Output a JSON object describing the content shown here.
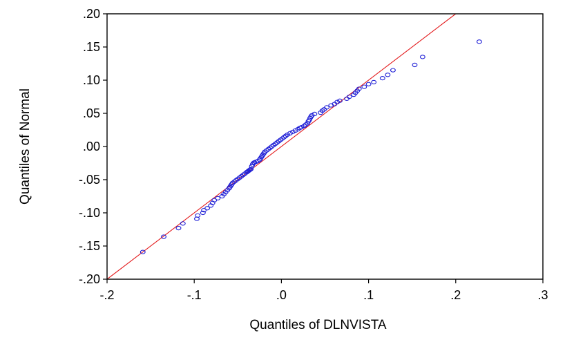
{
  "chart_data": {
    "type": "scatter",
    "title": "",
    "xlabel": "Quantiles of DLNVISTA",
    "ylabel": "Quantiles of Normal",
    "xlim": [
      -0.2,
      0.3
    ],
    "ylim": [
      -0.2,
      0.2
    ],
    "x_ticks": [
      -0.2,
      -0.1,
      0.0,
      0.1,
      0.2,
      0.3
    ],
    "x_tick_labels": [
      "-.2",
      "-.1",
      ".0",
      ".1",
      ".2",
      ".3"
    ],
    "y_ticks": [
      -0.2,
      -0.15,
      -0.1,
      -0.05,
      0.0,
      0.05,
      0.1,
      0.15,
      0.2
    ],
    "y_tick_labels": [
      "-.20",
      "-.15",
      "-.10",
      "-.05",
      ".00",
      ".05",
      ".10",
      ".15",
      ".20"
    ],
    "grid": false,
    "legend": "none",
    "reference_line": {
      "name": "",
      "color": "#e31a1c",
      "points": [
        [
          -0.2,
          -0.2
        ],
        [
          0.2,
          0.2
        ]
      ]
    },
    "marker_color": "#1f1fd6",
    "series": [
      {
        "name": "",
        "points": [
          [
            -0.159,
            -0.159
          ],
          [
            -0.135,
            -0.136
          ],
          [
            -0.118,
            -0.123
          ],
          [
            -0.113,
            -0.116
          ],
          [
            -0.097,
            -0.109
          ],
          [
            -0.096,
            -0.104
          ],
          [
            -0.09,
            -0.1
          ],
          [
            -0.089,
            -0.096
          ],
          [
            -0.085,
            -0.093
          ],
          [
            -0.081,
            -0.089
          ],
          [
            -0.079,
            -0.085
          ],
          [
            -0.077,
            -0.081
          ],
          [
            -0.073,
            -0.078
          ],
          [
            -0.068,
            -0.075
          ],
          [
            -0.066,
            -0.072
          ],
          [
            -0.064,
            -0.069
          ],
          [
            -0.062,
            -0.066
          ],
          [
            -0.06,
            -0.063
          ],
          [
            -0.059,
            -0.061
          ],
          [
            -0.058,
            -0.059
          ],
          [
            -0.057,
            -0.057
          ],
          [
            -0.056,
            -0.055
          ],
          [
            -0.054,
            -0.053
          ],
          [
            -0.052,
            -0.051
          ],
          [
            -0.05,
            -0.049
          ],
          [
            -0.048,
            -0.047
          ],
          [
            -0.046,
            -0.045
          ],
          [
            -0.044,
            -0.043
          ],
          [
            -0.042,
            -0.041
          ],
          [
            -0.04,
            -0.039
          ],
          [
            -0.039,
            -0.038
          ],
          [
            -0.038,
            -0.037
          ],
          [
            -0.037,
            -0.036
          ],
          [
            -0.036,
            -0.035
          ],
          [
            -0.035,
            -0.034
          ],
          [
            -0.034,
            -0.03
          ],
          [
            -0.033,
            -0.027
          ],
          [
            -0.032,
            -0.025
          ],
          [
            -0.031,
            -0.024
          ],
          [
            -0.029,
            -0.023
          ],
          [
            -0.027,
            -0.022
          ],
          [
            -0.025,
            -0.02
          ],
          [
            -0.024,
            -0.018
          ],
          [
            -0.023,
            -0.016
          ],
          [
            -0.022,
            -0.014
          ],
          [
            -0.021,
            -0.012
          ],
          [
            -0.02,
            -0.01
          ],
          [
            -0.019,
            -0.008
          ],
          [
            -0.017,
            -0.006
          ],
          [
            -0.015,
            -0.004
          ],
          [
            -0.013,
            -0.002
          ],
          [
            -0.011,
            0.0
          ],
          [
            -0.009,
            0.002
          ],
          [
            -0.007,
            0.004
          ],
          [
            -0.005,
            0.006
          ],
          [
            -0.003,
            0.008
          ],
          [
            -0.001,
            0.01
          ],
          [
            0.001,
            0.012
          ],
          [
            0.003,
            0.014
          ],
          [
            0.005,
            0.016
          ],
          [
            0.007,
            0.018
          ],
          [
            0.01,
            0.02
          ],
          [
            0.013,
            0.022
          ],
          [
            0.016,
            0.024
          ],
          [
            0.019,
            0.026
          ],
          [
            0.021,
            0.028
          ],
          [
            0.023,
            0.029
          ],
          [
            0.026,
            0.031
          ],
          [
            0.028,
            0.033
          ],
          [
            0.03,
            0.035
          ],
          [
            0.031,
            0.038
          ],
          [
            0.032,
            0.04
          ],
          [
            0.033,
            0.043
          ],
          [
            0.034,
            0.045
          ],
          [
            0.035,
            0.047
          ],
          [
            0.038,
            0.049
          ],
          [
            0.045,
            0.051
          ],
          [
            0.047,
            0.054
          ],
          [
            0.049,
            0.056
          ],
          [
            0.052,
            0.059
          ],
          [
            0.057,
            0.062
          ],
          [
            0.061,
            0.064
          ],
          [
            0.064,
            0.067
          ],
          [
            0.067,
            0.069
          ],
          [
            0.075,
            0.072
          ],
          [
            0.078,
            0.075
          ],
          [
            0.083,
            0.078
          ],
          [
            0.085,
            0.081
          ],
          [
            0.087,
            0.084
          ],
          [
            0.089,
            0.087
          ],
          [
            0.095,
            0.09
          ],
          [
            0.1,
            0.094
          ],
          [
            0.106,
            0.097
          ],
          [
            0.116,
            0.103
          ],
          [
            0.122,
            0.108
          ],
          [
            0.128,
            0.115
          ],
          [
            0.153,
            0.123
          ],
          [
            0.162,
            0.135
          ],
          [
            0.227,
            0.158
          ]
        ]
      }
    ]
  }
}
